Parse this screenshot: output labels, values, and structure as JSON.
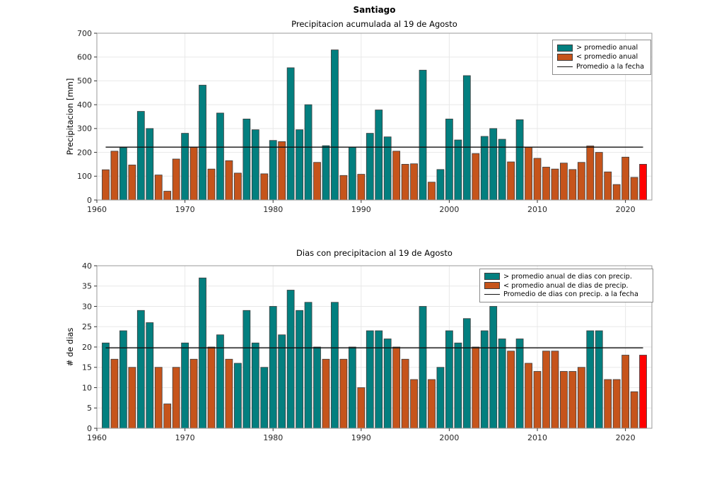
{
  "figure": {
    "suptitle": "Santiago"
  },
  "colors": {
    "above": "#037f7f",
    "below": "#c6541b",
    "current": "#ff0000",
    "average_line": "#111111",
    "grid": "#e8e8e8",
    "frame": "#9a9a9a",
    "tick": "#333333",
    "edge": "#3c3c3c"
  },
  "chart_data": [
    {
      "id": "precipitation",
      "type": "bar",
      "title": "Precipitacion acumulada al 19 de Agosto",
      "ylabel": "Precipitacion [mm]",
      "ylim": [
        0,
        700
      ],
      "yticks": [
        0,
        100,
        200,
        300,
        400,
        500,
        600,
        700
      ],
      "xlim": [
        1960,
        2023
      ],
      "xticks": [
        1960,
        1970,
        1980,
        1990,
        2000,
        2010,
        2020
      ],
      "grid": true,
      "legend_position": "upper right",
      "legend": [
        "> promedio anual",
        "< promedio anual",
        "Promedio a la fecha"
      ],
      "average": {
        "value": 222,
        "from_year": 1961,
        "to_year": 2022
      },
      "years": [
        1961,
        1962,
        1963,
        1964,
        1965,
        1966,
        1967,
        1968,
        1969,
        1970,
        1971,
        1972,
        1973,
        1974,
        1975,
        1976,
        1977,
        1978,
        1979,
        1980,
        1981,
        1982,
        1983,
        1984,
        1985,
        1986,
        1987,
        1988,
        1989,
        1990,
        1991,
        1992,
        1993,
        1994,
        1995,
        1996,
        1997,
        1998,
        1999,
        2000,
        2001,
        2002,
        2003,
        2004,
        2005,
        2006,
        2007,
        2008,
        2009,
        2010,
        2011,
        2012,
        2013,
        2014,
        2015,
        2016,
        2017,
        2018,
        2019,
        2020,
        2021,
        2022
      ],
      "values": [
        127,
        205,
        220,
        147,
        372,
        300,
        105,
        37,
        172,
        280,
        222,
        482,
        130,
        365,
        165,
        113,
        340,
        295,
        110,
        250,
        245,
        555,
        295,
        400,
        158,
        228,
        630,
        103,
        222,
        108,
        280,
        378,
        265,
        205,
        150,
        152,
        545,
        75,
        128,
        340,
        252,
        522,
        195,
        267,
        300,
        255,
        160,
        337,
        222,
        175,
        138,
        130,
        155,
        128,
        158,
        227,
        200,
        118,
        65,
        180,
        95,
        150
      ],
      "cats": [
        "below",
        "below",
        "above",
        "below",
        "above",
        "above",
        "below",
        "below",
        "below",
        "above",
        "below",
        "above",
        "below",
        "above",
        "below",
        "below",
        "above",
        "above",
        "below",
        "above",
        "below",
        "above",
        "above",
        "above",
        "below",
        "above",
        "above",
        "below",
        "above",
        "below",
        "above",
        "above",
        "above",
        "below",
        "below",
        "below",
        "above",
        "below",
        "above",
        "above",
        "above",
        "above",
        "below",
        "above",
        "above",
        "above",
        "below",
        "above",
        "below",
        "below",
        "below",
        "below",
        "below",
        "below",
        "below",
        "below",
        "below",
        "below",
        "below",
        "below",
        "below",
        "current"
      ]
    },
    {
      "id": "rain-days",
      "type": "bar",
      "title": "Dias con precipitacion al 19 de Agosto",
      "ylabel": "# de dias",
      "ylim": [
        0,
        40
      ],
      "yticks": [
        0,
        5,
        10,
        15,
        20,
        25,
        30,
        35,
        40
      ],
      "xlim": [
        1960,
        2023
      ],
      "xticks": [
        1960,
        1970,
        1980,
        1990,
        2000,
        2010,
        2020
      ],
      "grid": true,
      "legend_position": "upper right",
      "legend": [
        "> promedio anual de dias con precip.",
        "< promedio anual de dias de precip.",
        "Promedio de dias con precip. a la fecha"
      ],
      "average": {
        "value": 19.8,
        "from_year": 1961,
        "to_year": 2022
      },
      "years": [
        1961,
        1962,
        1963,
        1964,
        1965,
        1966,
        1967,
        1968,
        1969,
        1970,
        1971,
        1972,
        1973,
        1974,
        1975,
        1976,
        1977,
        1978,
        1979,
        1980,
        1981,
        1982,
        1983,
        1984,
        1985,
        1986,
        1987,
        1988,
        1989,
        1990,
        1991,
        1992,
        1993,
        1994,
        1995,
        1996,
        1997,
        1998,
        1999,
        2000,
        2001,
        2002,
        2003,
        2004,
        2005,
        2006,
        2007,
        2008,
        2009,
        2010,
        2011,
        2012,
        2013,
        2014,
        2015,
        2016,
        2017,
        2018,
        2019,
        2020,
        2021,
        2022
      ],
      "values": [
        21,
        17,
        24,
        15,
        29,
        26,
        15,
        6,
        15,
        21,
        17,
        37,
        20,
        23,
        17,
        16,
        29,
        21,
        15,
        30,
        23,
        34,
        29,
        31,
        20,
        17,
        31,
        17,
        20,
        10,
        24,
        24,
        22,
        20,
        17,
        12,
        30,
        12,
        15,
        24,
        21,
        27,
        20,
        24,
        30,
        22,
        19,
        22,
        16,
        14,
        19,
        19,
        14,
        14,
        15,
        24,
        24,
        12,
        12,
        18,
        9,
        18
      ],
      "cats": [
        "above",
        "below",
        "above",
        "below",
        "above",
        "above",
        "below",
        "below",
        "below",
        "above",
        "below",
        "above",
        "below",
        "above",
        "below",
        "above",
        "above",
        "above",
        "above",
        "above",
        "above",
        "above",
        "above",
        "above",
        "above",
        "below",
        "above",
        "below",
        "above",
        "below",
        "above",
        "above",
        "above",
        "below",
        "below",
        "below",
        "above",
        "below",
        "above",
        "above",
        "above",
        "above",
        "below",
        "above",
        "above",
        "above",
        "below",
        "above",
        "below",
        "below",
        "below",
        "below",
        "below",
        "below",
        "below",
        "above",
        "above",
        "below",
        "below",
        "below",
        "below",
        "current"
      ]
    }
  ]
}
